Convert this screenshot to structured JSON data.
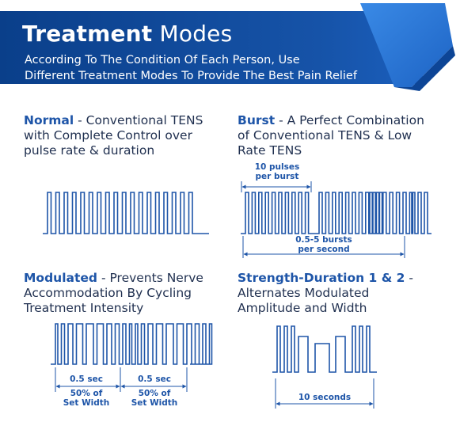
{
  "banner": {
    "title_bold": "Treatment",
    "title_light": "Modes",
    "subtitle_line1": "According To The Condition Of Each Person, Use",
    "subtitle_line2": "Different Treatment Modes To Provide The Best Pain Relief",
    "colors": {
      "dark": "#0a3f8a",
      "mid": "#1b5fbd",
      "light": "#2f7fdb"
    }
  },
  "modes": [
    {
      "name": "Normal",
      "description_line1": "- Conventional TENS",
      "description_line2": "with Complete Control over",
      "description_line3": "pulse rate & duration"
    },
    {
      "name": "Burst",
      "description_line1": "- A Perfect Combination",
      "description_line2": "of Conventional TENS & Low",
      "description_line3": "Rate TENS",
      "annotations": {
        "top_line1": "10 pulses",
        "top_line2": "per burst",
        "bottom_line1": "0.5-5 bursts",
        "bottom_line2": "per second"
      }
    },
    {
      "name": "Modulated",
      "description_line1": "- Prevents Nerve",
      "description_line2": "Accommodation By Cycling",
      "description_line3": "Treatment Intensity",
      "annotations": {
        "left_time": "0.5 sec",
        "right_time": "0.5 sec",
        "left_width_line1": "50% of",
        "left_width_line2": "Set Width",
        "right_width_line1": "50% of",
        "right_width_line2": "Set Width"
      }
    },
    {
      "name": "Strength-Duration 1 & 2",
      "description_line1": "-",
      "description_line2": "Alternates Modulated",
      "description_line3": "Amplitude and Width",
      "annotations": {
        "duration": "10 seconds"
      }
    }
  ],
  "colors": {
    "wave": "#1e55a8",
    "text": "#1f2f4f",
    "accent": "#1e55a8"
  }
}
